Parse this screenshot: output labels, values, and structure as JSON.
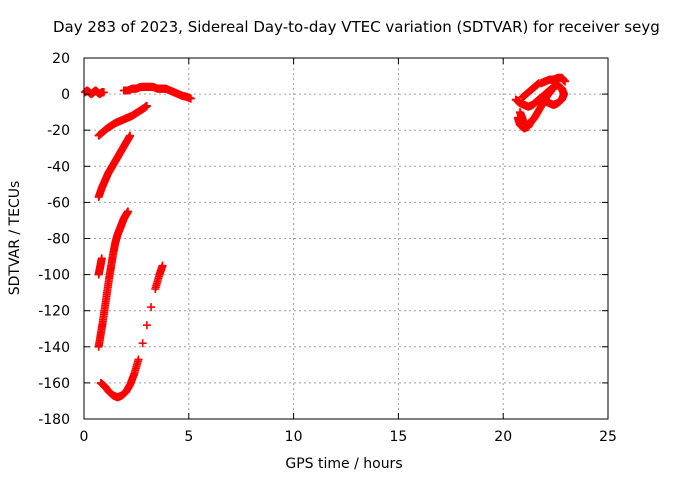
{
  "chart_data": {
    "type": "scatter",
    "title": "Day 283 of 2023, Sidereal Day-to-day VTEC variation (SDTVAR) for receiver seyg",
    "xlabel": "GPS time / hours",
    "ylabel": "SDTVAR / TECUs",
    "xlim": [
      0,
      25
    ],
    "ylim": [
      -180,
      20
    ],
    "xticks": [
      0,
      5,
      10,
      15,
      20,
      25
    ],
    "yticks": [
      20,
      0,
      -20,
      -40,
      -60,
      -80,
      -100,
      -120,
      -140,
      -160,
      -180
    ],
    "grid": true,
    "grid_style": "dotted",
    "marker_color": "#ff0000",
    "marker": "plus",
    "series": [
      {
        "points": [
          [
            0.05,
            1
          ],
          [
            0.15,
            2
          ],
          [
            0.25,
            1
          ],
          [
            0.35,
            0
          ],
          [
            0.45,
            1
          ],
          [
            0.55,
            2
          ],
          [
            0.65,
            1
          ],
          [
            0.75,
            0
          ],
          [
            0.85,
            1
          ],
          [
            0.95,
            1
          ],
          [
            1.9,
            2
          ],
          [
            2.1,
            2
          ],
          [
            2.3,
            3
          ],
          [
            2.5,
            3
          ],
          [
            2.7,
            4
          ],
          [
            2.9,
            4
          ],
          [
            3.1,
            4
          ],
          [
            3.3,
            4
          ],
          [
            3.5,
            3
          ],
          [
            3.7,
            3
          ],
          [
            3.9,
            3
          ],
          [
            4.1,
            2
          ],
          [
            4.3,
            1
          ],
          [
            4.5,
            0
          ],
          [
            4.7,
            -1
          ],
          [
            4.9,
            -1.5
          ],
          [
            5.1,
            -2.5
          ],
          [
            0.7,
            -23
          ],
          [
            0.9,
            -21
          ],
          [
            1.1,
            -19
          ],
          [
            1.3,
            -17.5
          ],
          [
            1.5,
            -16
          ],
          [
            1.7,
            -15
          ],
          [
            1.9,
            -14
          ],
          [
            2.1,
            -13
          ],
          [
            2.3,
            -12
          ],
          [
            2.5,
            -10.5
          ],
          [
            2.7,
            -9
          ],
          [
            2.9,
            -7.5
          ],
          [
            3.0,
            -6.5
          ],
          [
            0.7,
            -57
          ],
          [
            0.85,
            -52
          ],
          [
            1.0,
            -48
          ],
          [
            1.15,
            -44
          ],
          [
            1.3,
            -41
          ],
          [
            1.45,
            -38
          ],
          [
            1.6,
            -35
          ],
          [
            1.75,
            -32
          ],
          [
            1.9,
            -29
          ],
          [
            2.05,
            -26
          ],
          [
            2.2,
            -23
          ],
          [
            0.7,
            -100
          ],
          [
            0.75,
            -97
          ],
          [
            0.8,
            -94
          ],
          [
            0.85,
            -91
          ],
          [
            0.7,
            -140
          ],
          [
            0.8,
            -133
          ],
          [
            0.9,
            -126
          ],
          [
            1.0,
            -118
          ],
          [
            1.1,
            -110
          ],
          [
            1.2,
            -102
          ],
          [
            1.3,
            -95
          ],
          [
            1.4,
            -88
          ],
          [
            1.5,
            -82
          ],
          [
            1.6,
            -78
          ],
          [
            1.7,
            -75
          ],
          [
            1.8,
            -72
          ],
          [
            1.9,
            -69
          ],
          [
            2.0,
            -67
          ],
          [
            2.1,
            -65
          ],
          [
            0.8,
            -160
          ],
          [
            1.0,
            -162
          ],
          [
            1.2,
            -165
          ],
          [
            1.4,
            -167
          ],
          [
            1.6,
            -168
          ],
          [
            1.8,
            -167
          ],
          [
            2.0,
            -165
          ],
          [
            2.2,
            -161
          ],
          [
            2.4,
            -155
          ],
          [
            2.6,
            -147
          ],
          [
            2.8,
            -138
          ],
          [
            3.0,
            -128
          ],
          [
            3.2,
            -118
          ],
          [
            3.4,
            -108
          ],
          [
            3.6,
            -100
          ],
          [
            3.75,
            -95
          ],
          [
            20.6,
            -3
          ],
          [
            20.8,
            -5
          ],
          [
            21.0,
            -6
          ],
          [
            21.2,
            -7
          ],
          [
            21.4,
            -6
          ],
          [
            21.6,
            -4
          ],
          [
            21.8,
            -2
          ],
          [
            22.0,
            0
          ],
          [
            22.2,
            2
          ],
          [
            22.4,
            4
          ],
          [
            22.6,
            5
          ],
          [
            22.8,
            3
          ],
          [
            22.9,
            0
          ],
          [
            22.8,
            -3
          ],
          [
            22.6,
            -5
          ],
          [
            22.4,
            -6
          ],
          [
            22.2,
            -5
          ],
          [
            22.0,
            -4
          ],
          [
            21.8,
            -3
          ],
          [
            20.8,
            -10
          ],
          [
            20.9,
            -13
          ],
          [
            21.0,
            -16
          ],
          [
            21.1,
            -18
          ],
          [
            21.3,
            -16
          ],
          [
            21.5,
            -13
          ],
          [
            21.7,
            -9
          ],
          [
            21.9,
            -5
          ],
          [
            22.1,
            -1
          ],
          [
            22.3,
            2
          ],
          [
            21.8,
            6
          ],
          [
            22.0,
            7
          ],
          [
            22.2,
            8
          ],
          [
            22.4,
            8
          ],
          [
            22.6,
            9
          ],
          [
            22.8,
            9
          ],
          [
            22.95,
            7
          ],
          [
            20.9,
            -2
          ],
          [
            21.1,
            0
          ],
          [
            21.3,
            2
          ],
          [
            21.5,
            4
          ],
          [
            21.7,
            6
          ],
          [
            20.7,
            -13
          ],
          [
            20.8,
            -17
          ],
          [
            21.0,
            -19
          ],
          [
            21.2,
            -18
          ],
          [
            21.4,
            -14
          ]
        ]
      }
    ]
  }
}
